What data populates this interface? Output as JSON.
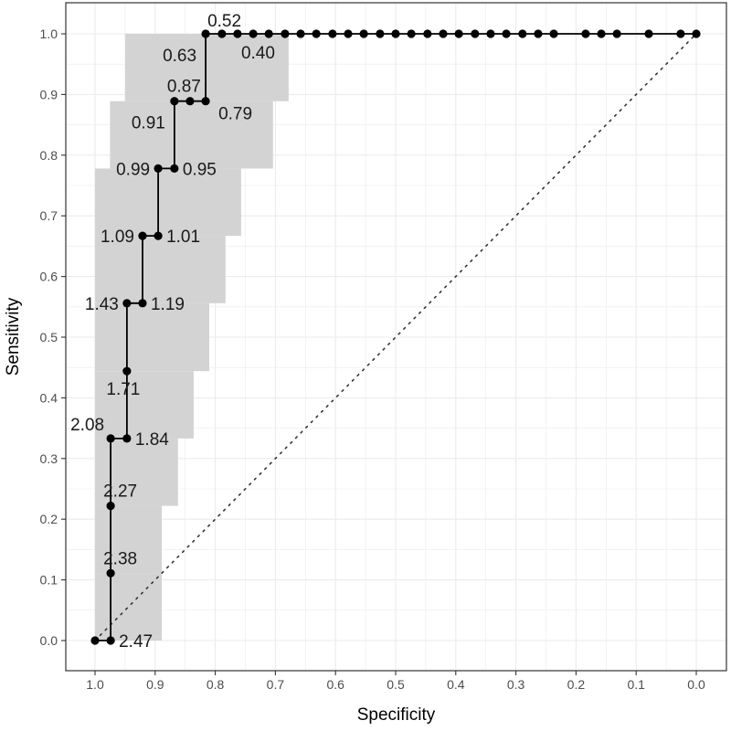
{
  "chart_data": {
    "type": "line",
    "xlabel": "Specificity",
    "ylabel": "Sensitivity",
    "xlim": [
      1.0,
      0.0
    ],
    "ylim": [
      0.0,
      1.0
    ],
    "x_reversed": true,
    "grid": true,
    "x_ticks": [
      "1.0",
      "0.9",
      "0.8",
      "0.7",
      "0.6",
      "0.5",
      "0.4",
      "0.3",
      "0.2",
      "0.1",
      "0.0"
    ],
    "y_ticks": [
      "0.0",
      "0.1",
      "0.2",
      "0.3",
      "0.4",
      "0.5",
      "0.6",
      "0.7",
      "0.8",
      "0.9",
      "1.0"
    ],
    "reference_line": {
      "from": [
        1.0,
        0.0
      ],
      "to": [
        0.0,
        1.0
      ],
      "style": "dotted"
    },
    "colors": {
      "curve": "#000000",
      "ci_band": "#d3d3d3",
      "grid": "#ebebeb",
      "panel_border": "#333333"
    },
    "ci_band": [
      {
        "spec_max": 1.0,
        "spec_min": 0.889,
        "sens_lo": 0.0,
        "sens_hi": 0.111
      },
      {
        "spec_max": 1.0,
        "spec_min": 0.889,
        "sens_lo": 0.111,
        "sens_hi": 0.222
      },
      {
        "spec_max": 1.0,
        "spec_min": 0.862,
        "sens_lo": 0.222,
        "sens_hi": 0.333
      },
      {
        "spec_max": 1.0,
        "spec_min": 0.836,
        "sens_lo": 0.333,
        "sens_hi": 0.444
      },
      {
        "spec_max": 1.0,
        "spec_min": 0.81,
        "sens_lo": 0.444,
        "sens_hi": 0.556
      },
      {
        "spec_max": 1.0,
        "spec_min": 0.783,
        "sens_lo": 0.556,
        "sens_hi": 0.667
      },
      {
        "spec_max": 1.0,
        "spec_min": 0.757,
        "sens_lo": 0.667,
        "sens_hi": 0.778
      },
      {
        "spec_max": 0.975,
        "spec_min": 0.704,
        "sens_lo": 0.778,
        "sens_hi": 0.889
      },
      {
        "spec_max": 0.95,
        "spec_min": 0.678,
        "sens_lo": 0.889,
        "sens_hi": 1.0
      }
    ],
    "curve": [
      [
        1.0,
        0.0
      ],
      [
        0.974,
        0.0
      ],
      [
        0.974,
        0.111
      ],
      [
        0.974,
        0.222
      ],
      [
        0.974,
        0.333
      ],
      [
        0.947,
        0.333
      ],
      [
        0.947,
        0.444
      ],
      [
        0.947,
        0.556
      ],
      [
        0.921,
        0.556
      ],
      [
        0.921,
        0.667
      ],
      [
        0.895,
        0.667
      ],
      [
        0.895,
        0.778
      ],
      [
        0.868,
        0.778
      ],
      [
        0.868,
        0.889
      ],
      [
        0.842,
        0.889
      ],
      [
        0.816,
        0.889
      ],
      [
        0.816,
        1.0
      ],
      [
        0.789,
        1.0
      ],
      [
        0.763,
        1.0
      ],
      [
        0.737,
        1.0
      ],
      [
        0.711,
        1.0
      ],
      [
        0.684,
        1.0
      ],
      [
        0.658,
        1.0
      ],
      [
        0.632,
        1.0
      ],
      [
        0.605,
        1.0
      ],
      [
        0.579,
        1.0
      ],
      [
        0.553,
        1.0
      ],
      [
        0.526,
        1.0
      ],
      [
        0.5,
        1.0
      ],
      [
        0.474,
        1.0
      ],
      [
        0.447,
        1.0
      ],
      [
        0.421,
        1.0
      ],
      [
        0.395,
        1.0
      ],
      [
        0.368,
        1.0
      ],
      [
        0.342,
        1.0
      ],
      [
        0.316,
        1.0
      ],
      [
        0.289,
        1.0
      ],
      [
        0.263,
        1.0
      ],
      [
        0.237,
        1.0
      ],
      [
        0.184,
        1.0
      ],
      [
        0.158,
        1.0
      ],
      [
        0.132,
        1.0
      ],
      [
        0.079,
        1.0
      ],
      [
        0.026,
        1.0
      ],
      [
        0.0,
        1.0
      ]
    ],
    "threshold_labels": [
      {
        "text": "2.47",
        "spec": 0.974,
        "sens": 0.0,
        "anchor": "right"
      },
      {
        "text": "2.38",
        "spec": 0.974,
        "sens": 0.111,
        "anchor": "above"
      },
      {
        "text": "2.27",
        "spec": 0.974,
        "sens": 0.222,
        "anchor": "above"
      },
      {
        "text": "2.08",
        "spec": 0.974,
        "sens": 0.333,
        "anchor": "left-above"
      },
      {
        "text": "1.84",
        "spec": 0.947,
        "sens": 0.333,
        "anchor": "right"
      },
      {
        "text": "1.71",
        "spec": 0.947,
        "sens": 0.444,
        "anchor": "below"
      },
      {
        "text": "1.43",
        "spec": 0.947,
        "sens": 0.556,
        "anchor": "left"
      },
      {
        "text": "1.19",
        "spec": 0.921,
        "sens": 0.556,
        "anchor": "right"
      },
      {
        "text": "1.09",
        "spec": 0.921,
        "sens": 0.667,
        "anchor": "left"
      },
      {
        "text": "1.01",
        "spec": 0.895,
        "sens": 0.667,
        "anchor": "right"
      },
      {
        "text": "0.99",
        "spec": 0.895,
        "sens": 0.778,
        "anchor": "left"
      },
      {
        "text": "0.95",
        "spec": 0.868,
        "sens": 0.778,
        "anchor": "right"
      },
      {
        "text": "0.91",
        "spec": 0.868,
        "sens": 0.889,
        "anchor": "left-below"
      },
      {
        "text": "0.87",
        "spec": 0.868,
        "sens": 0.889,
        "anchor": "above"
      },
      {
        "text": "0.79",
        "spec": 0.816,
        "sens": 0.889,
        "anchor": "right-below"
      },
      {
        "text": "0.63",
        "spec": 0.816,
        "sens": 1.0,
        "anchor": "left-below"
      },
      {
        "text": "0.52",
        "spec": 0.816,
        "sens": 1.0,
        "anchor": "above-right"
      },
      {
        "text": "0.40",
        "spec": 0.763,
        "sens": 1.0,
        "anchor": "below-right"
      }
    ]
  }
}
